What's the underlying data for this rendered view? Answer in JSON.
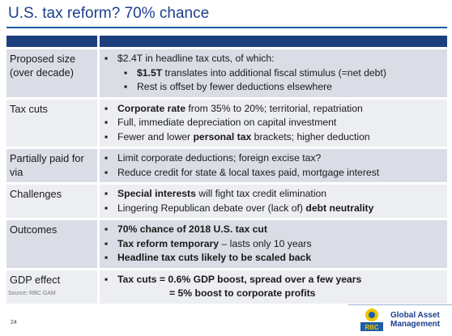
{
  "title": "U.S. tax reform? 70% chance",
  "rows": [
    {
      "label": "Proposed size (over decade)",
      "bullets": [
        {
          "level": 1,
          "parts": [
            {
              "t": "$2.4T in headline tax cuts, of which:",
              "b": false
            }
          ]
        },
        {
          "level": 2,
          "parts": [
            {
              "t": "$1.5T",
              "b": true
            },
            {
              "t": " translates into additional fiscal stimulus (=net debt)",
              "b": false
            }
          ]
        },
        {
          "level": 2,
          "parts": [
            {
              "t": "Rest is offset by fewer deductions elsewhere",
              "b": false
            }
          ]
        }
      ]
    },
    {
      "label": "Tax cuts",
      "bullets": [
        {
          "level": 1,
          "parts": [
            {
              "t": "Corporate rate",
              "b": true
            },
            {
              "t": " from 35% to 20%; territorial, repatriation",
              "b": false
            }
          ]
        },
        {
          "level": 1,
          "parts": [
            {
              "t": "Full, immediate depreciation on capital investment",
              "b": false
            }
          ]
        },
        {
          "level": 1,
          "parts": [
            {
              "t": "Fewer and lower ",
              "b": false
            },
            {
              "t": "personal tax",
              "b": true
            },
            {
              "t": " brackets; higher deduction",
              "b": false
            }
          ]
        }
      ]
    },
    {
      "label": "Partially paid for via",
      "bullets": [
        {
          "level": 1,
          "parts": [
            {
              "t": "Limit corporate deductions; foreign excise tax?",
              "b": false
            }
          ]
        },
        {
          "level": 1,
          "parts": [
            {
              "t": "Reduce credit for state & local taxes paid, mortgage interest",
              "b": false
            }
          ]
        }
      ]
    },
    {
      "label": "Challenges",
      "bullets": [
        {
          "level": 1,
          "parts": [
            {
              "t": "Special interests",
              "b": true
            },
            {
              "t": " will fight tax credit elimination",
              "b": false
            }
          ]
        },
        {
          "level": 1,
          "parts": [
            {
              "t": "Lingering Republican debate over (lack of) ",
              "b": false
            },
            {
              "t": "debt neutrality",
              "b": true
            }
          ]
        }
      ]
    },
    {
      "label": "Outcomes",
      "bullets": [
        {
          "level": 1,
          "parts": [
            {
              "t": "70%  chance of 2018 U.S. tax cut",
              "b": true
            }
          ]
        },
        {
          "level": 1,
          "parts": [
            {
              "t": "Tax reform temporary",
              "b": true
            },
            {
              "t": " – lasts only 10 years",
              "b": false
            }
          ]
        },
        {
          "level": 1,
          "parts": [
            {
              "t": "Headline tax cuts likely to be scaled back",
              "b": true
            }
          ]
        }
      ]
    },
    {
      "label": "GDP effect",
      "bullets": [
        {
          "level": 1,
          "parts": [
            {
              "t": "Tax cuts = 0.6% GDP boost, spread over a few years",
              "b": true
            }
          ]
        },
        {
          "level": 0,
          "parts": [
            {
              "t": "= 5%  boost to corporate profits",
              "b": true
            }
          ]
        }
      ]
    }
  ],
  "source": "Source: RBC GAM",
  "page_number": "24",
  "logo": {
    "line1": "Global Asset",
    "line2": "Management",
    "badge": "RBC"
  },
  "colors": {
    "title": "#1d3f8c",
    "header": "#1e3f7e",
    "row_dark": "#dadde5",
    "row_light": "#eceef2"
  }
}
